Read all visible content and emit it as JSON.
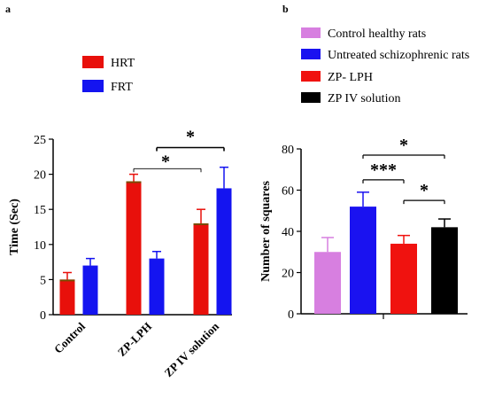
{
  "chart_data": [
    {
      "panel": "a",
      "type": "bar",
      "title": "",
      "xlabel": "",
      "ylabel": "Time (Sec)",
      "ylim": [
        0,
        25
      ],
      "yticks": [
        0,
        5,
        10,
        15,
        20,
        25
      ],
      "categories": [
        "Control",
        "ZP-LPH",
        "ZP IV solution"
      ],
      "series": [
        {
          "name": "HRT",
          "color": "#e8100b",
          "values": [
            5,
            19,
            13
          ],
          "errors": [
            1,
            1,
            2
          ]
        },
        {
          "name": "FRT",
          "color": "#1414f0",
          "values": [
            7,
            8,
            18
          ],
          "errors": [
            1,
            1,
            3
          ]
        }
      ],
      "legend_position": "top",
      "significance": [
        {
          "label": "*",
          "from": [
            1,
            0
          ],
          "to": [
            2,
            0
          ],
          "y": 20.8
        },
        {
          "label": "*",
          "from": [
            1,
            1
          ],
          "to": [
            2,
            1
          ],
          "y": 23.8
        }
      ]
    },
    {
      "panel": "b",
      "type": "bar",
      "title": "",
      "xlabel": "",
      "ylabel": "Number of squares",
      "ylim": [
        0,
        80
      ],
      "yticks": [
        0,
        20,
        40,
        60,
        80
      ],
      "categories": [
        "Control healthy rats",
        "Untreated schizophrenic rats",
        "ZP- LPH",
        "ZP IV solution"
      ],
      "values": [
        30,
        52,
        34,
        42
      ],
      "errors": [
        7,
        7,
        4,
        4
      ],
      "colors": [
        "#d77fe0",
        "#1a12f0",
        "#f0120f",
        "#000000"
      ],
      "legend_position": "top",
      "significance": [
        {
          "label": "***",
          "from": 1,
          "to": 2,
          "y": 65
        },
        {
          "label": "*",
          "from": 2,
          "to": 3,
          "y": 55
        },
        {
          "label": "*",
          "from": 1,
          "to": 3,
          "y": 77
        }
      ]
    }
  ]
}
